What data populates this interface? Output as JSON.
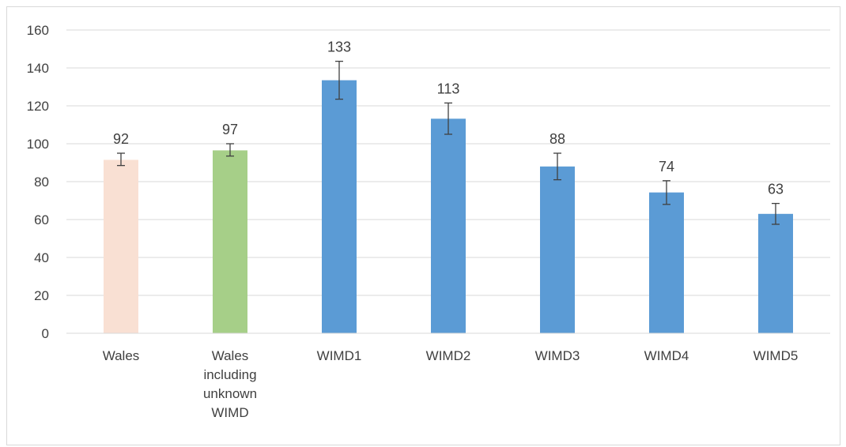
{
  "chart_data": {
    "type": "bar",
    "categories": [
      "Wales",
      "Wales including unknown WIMD",
      "WIMD1",
      "WIMD2",
      "WIMD3",
      "WIMD4",
      "WIMD5"
    ],
    "category_label_lines": [
      [
        "Wales"
      ],
      [
        "Wales",
        "including",
        "unknown",
        "WIMD"
      ],
      [
        "WIMD1"
      ],
      [
        "WIMD2"
      ],
      [
        "WIMD3"
      ],
      [
        "WIMD4"
      ],
      [
        "WIMD5"
      ]
    ],
    "values": [
      92,
      97,
      133,
      113,
      88,
      74,
      63
    ],
    "plotted_values": [
      91.5,
      96.5,
      133.5,
      113.2,
      88,
      74.3,
      63
    ],
    "error_low": [
      88.5,
      93.5,
      123.5,
      105,
      81,
      68,
      57.5
    ],
    "error_high": [
      95,
      100,
      143.5,
      121.5,
      95,
      80.5,
      68.5
    ],
    "data_labels": [
      "92",
      "97",
      "133",
      "113",
      "88",
      "74",
      "63"
    ],
    "bar_colors": [
      "#f9e0d3",
      "#a6cf88",
      "#5b9bd5",
      "#5b9bd5",
      "#5b9bd5",
      "#5b9bd5",
      "#5b9bd5"
    ],
    "ylim": [
      0,
      160
    ],
    "yticks": [
      0,
      20,
      40,
      60,
      80,
      100,
      120,
      140,
      160
    ],
    "grid": true,
    "title": "",
    "xlabel": "",
    "ylabel": ""
  }
}
